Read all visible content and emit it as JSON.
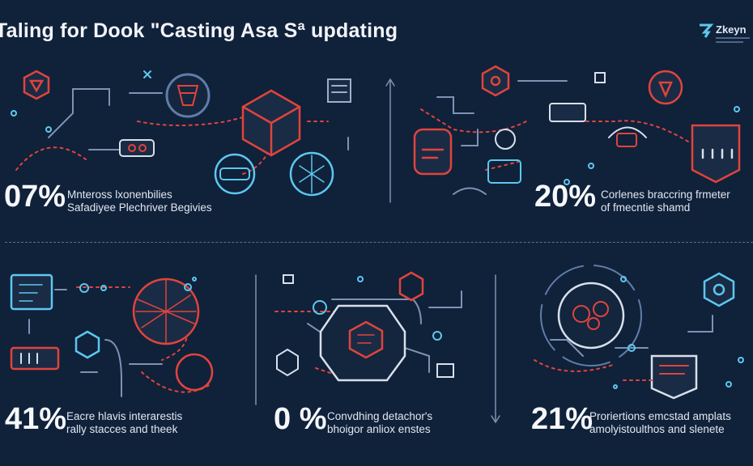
{
  "header": {
    "title": "Taling for Dook \"Casting Asa Sª updating",
    "logo_text": "Zkeyn"
  },
  "stats": [
    {
      "value": "07%",
      "line1": "Mnteross lxonenbilies",
      "line2": "Safadiyee Plechriver Begivies"
    },
    {
      "value": "20%",
      "line1": "Corlenes braccring frmeter",
      "line2": "of fmecntie shamd"
    },
    {
      "value": "41%",
      "line1": "Eacre hlavis interarestis",
      "line2": "rally stacces and theek"
    },
    {
      "value": "0 %",
      "line1": "Convdhing detachor's",
      "line2": "bhoigor anliox enstes"
    },
    {
      "value": "21%",
      "line1": "Proriertions emcstad amplats",
      "line2": "amolyistoulthos and slenete"
    }
  ],
  "colors": {
    "background": "#10213a",
    "red_accent": "#e0443c",
    "blue_accent": "#5cc8ef",
    "line": "#6d86a8"
  },
  "icons": [
    "hexagon-icon",
    "cube-icon",
    "globe-network-icon",
    "shield-icon",
    "monitor-icon",
    "server-icon",
    "router-icon",
    "chip-icon",
    "gear-icon",
    "key-icon",
    "lock-icon"
  ]
}
